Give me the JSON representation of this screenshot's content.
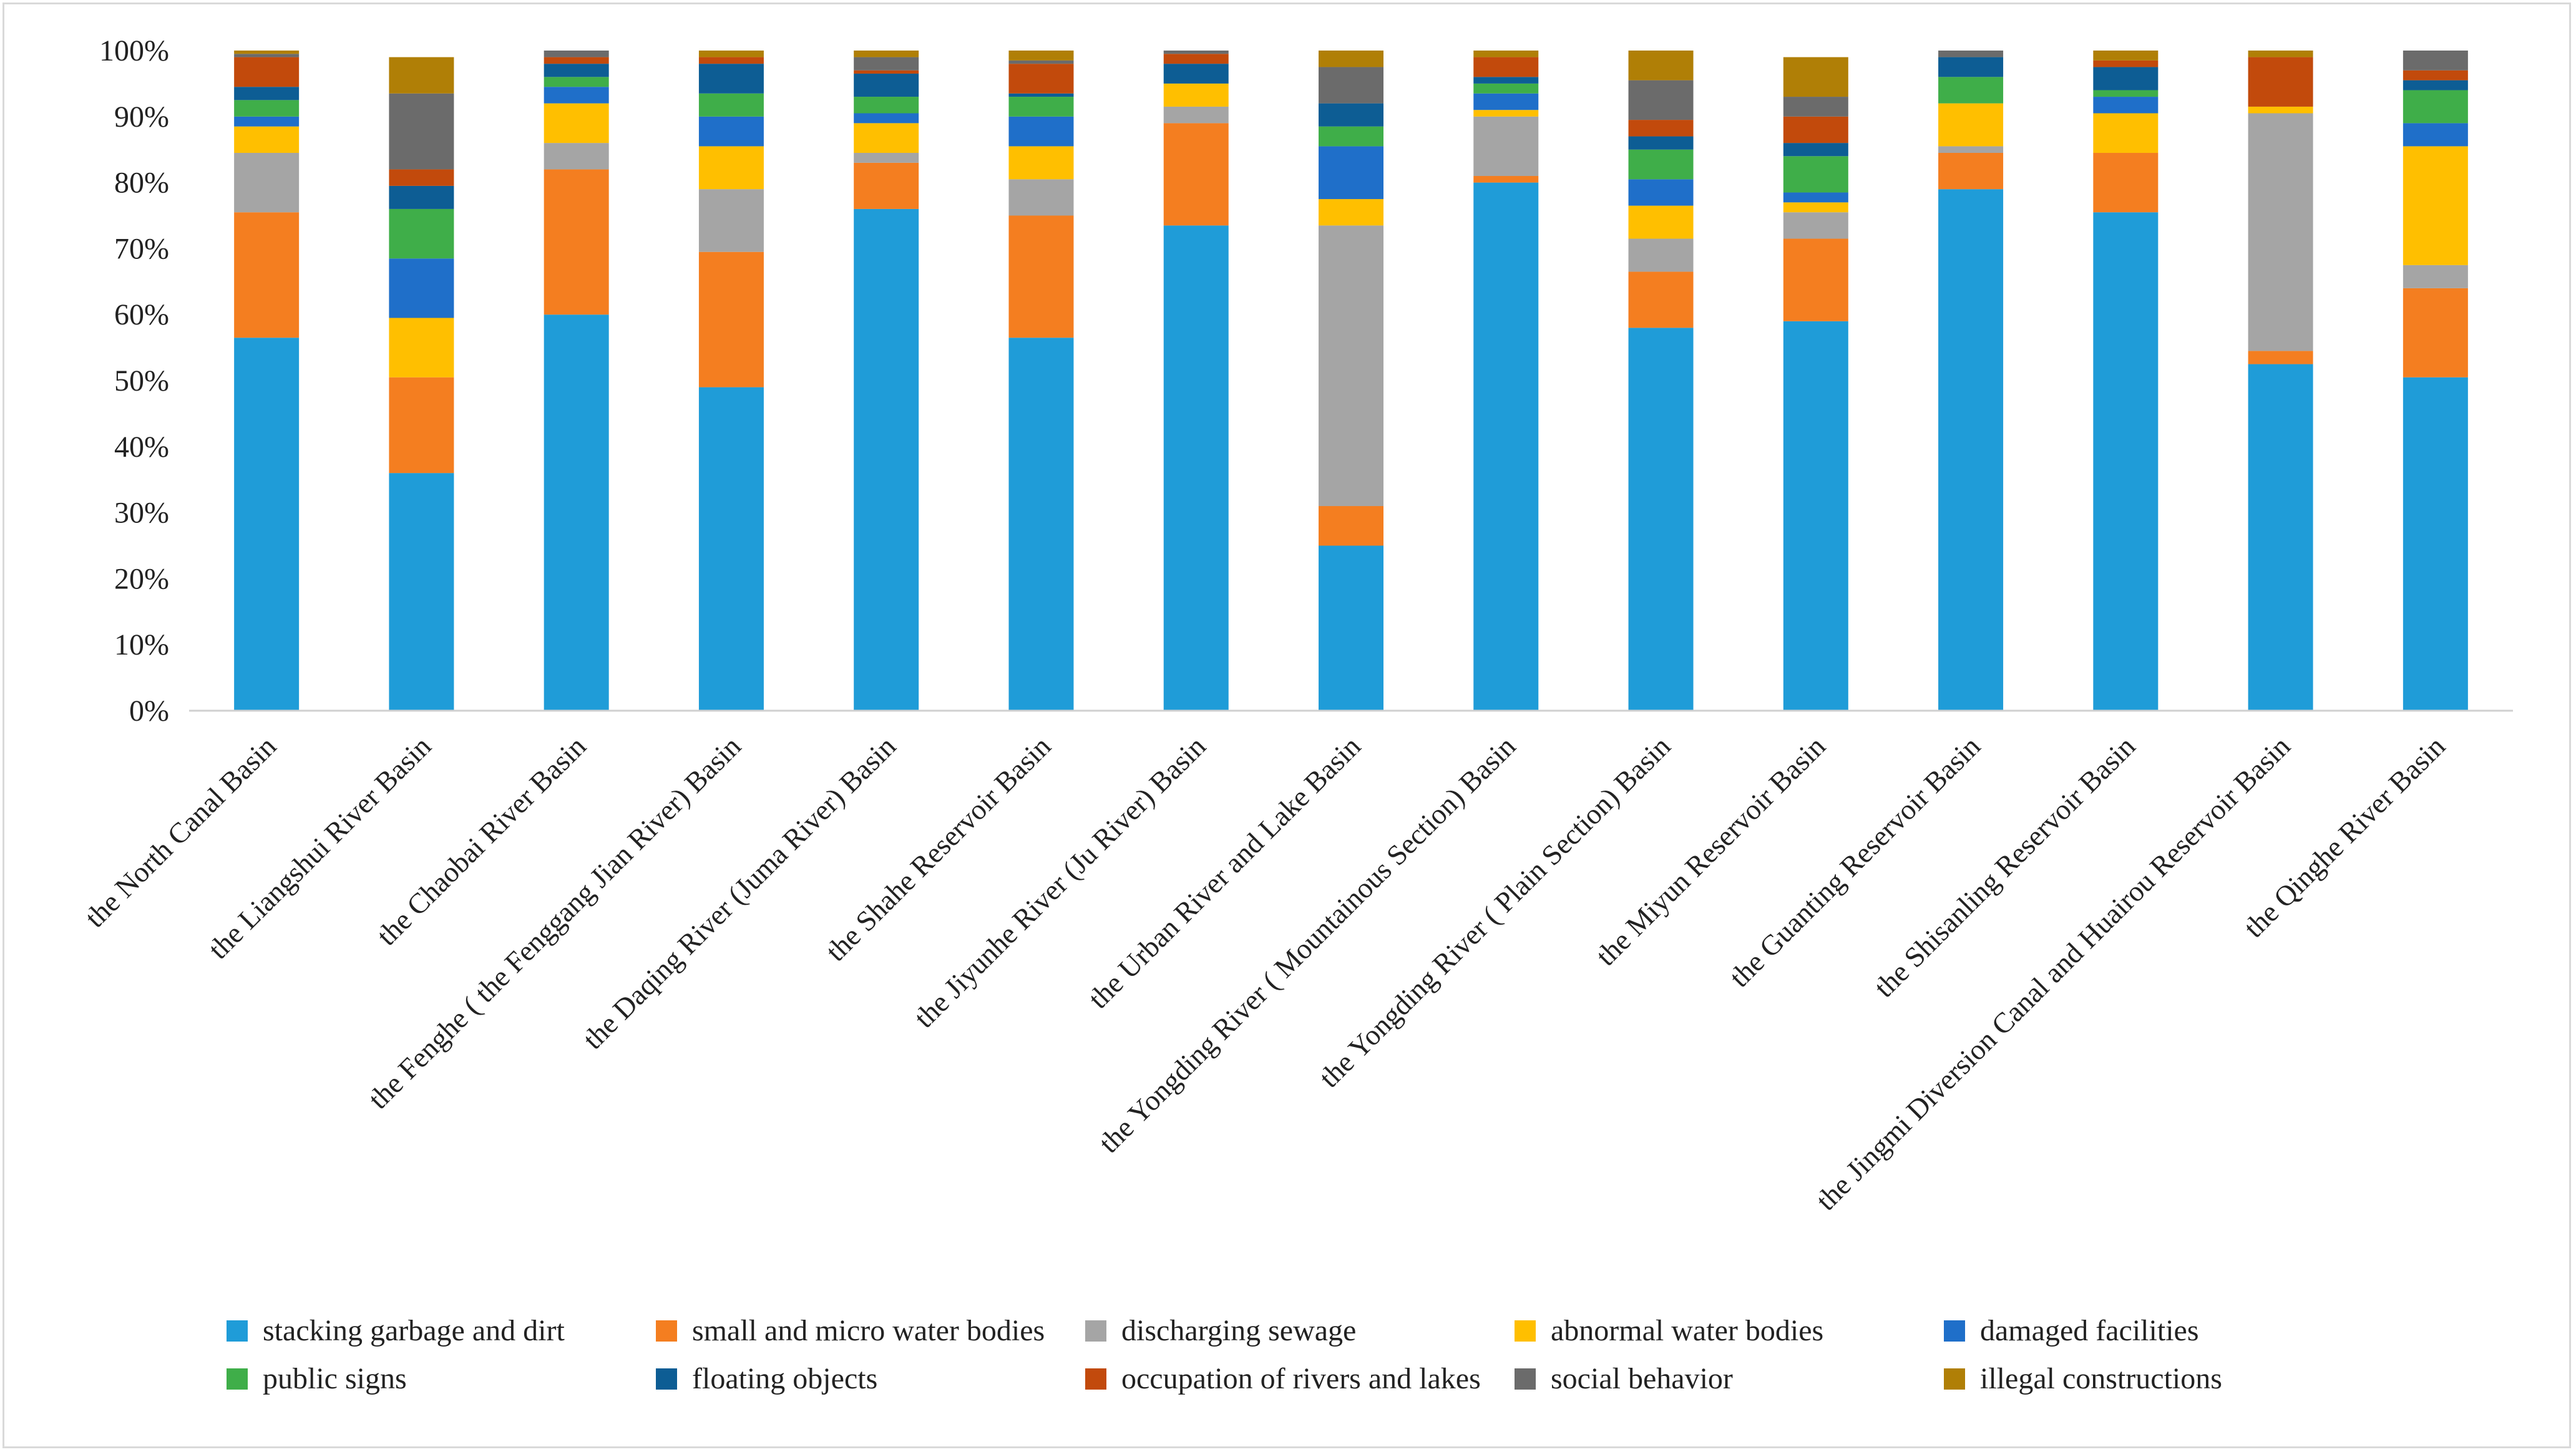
{
  "chart_data": {
    "type": "bar",
    "stacked": true,
    "percent": true,
    "title": "",
    "xlabel": "",
    "ylabel": "",
    "ylim": [
      0,
      100
    ],
    "yticks": [
      "0%",
      "10%",
      "20%",
      "30%",
      "40%",
      "50%",
      "60%",
      "70%",
      "80%",
      "90%",
      "100%"
    ],
    "legend_position": "bottom",
    "categories": [
      "the North Canal Basin",
      "the Liangshui River Basin",
      "the Chaobai River Basin",
      "the Fenghe ( the Fenggang Jian River) Basin",
      "the Daqing River (Juma River) Basin",
      "the Shahe Reservoir Basin",
      "the Jiyunhe River (Ju River) Basin",
      "the Urban River and Lake Basin",
      "the Yongding River ( Mountainous Section) Basin",
      "the Yongding River ( Plain Section) Basin",
      "the Miyun Reservoir Basin",
      "the Guanting Reservoir Basin",
      "the Shisanling Reservoir Basin",
      "the Jingmi Diversion Canal and Huairou Reservoir Basin",
      "the Qinghe River Basin"
    ],
    "series": [
      {
        "name": "stacking garbage and dirt",
        "color": "#1f9cd8",
        "values": [
          56.5,
          36.0,
          60.0,
          49.0,
          76.0,
          56.5,
          73.5,
          25.0,
          80.0,
          58.0,
          59.0,
          79.0,
          75.5,
          52.5,
          50.5
        ]
      },
      {
        "name": "small and micro water bodies",
        "color": "#f47e20",
        "values": [
          19.0,
          14.5,
          22.0,
          20.5,
          7.0,
          18.5,
          15.5,
          6.0,
          1.0,
          8.5,
          12.5,
          5.5,
          9.0,
          2.0,
          13.5
        ]
      },
      {
        "name": "discharging sewage",
        "color": "#a5a5a5",
        "values": [
          9.0,
          0.0,
          4.0,
          9.5,
          1.5,
          5.5,
          2.5,
          42.5,
          9.0,
          5.0,
          4.0,
          1.0,
          0.0,
          36.0,
          3.5
        ]
      },
      {
        "name": "abnormal water bodies",
        "color": "#ffbf00",
        "values": [
          4.0,
          9.0,
          6.0,
          6.5,
          4.5,
          5.0,
          3.5,
          4.0,
          1.0,
          5.0,
          1.5,
          6.5,
          6.0,
          1.0,
          18.0
        ]
      },
      {
        "name": "damaged facilities",
        "color": "#1f6fc9",
        "values": [
          1.5,
          9.0,
          2.5,
          4.5,
          1.5,
          4.5,
          0.0,
          8.0,
          2.5,
          4.0,
          1.5,
          0.0,
          2.5,
          0.0,
          3.5
        ]
      },
      {
        "name": "public signs",
        "color": "#3fae49",
        "values": [
          2.5,
          7.5,
          1.5,
          3.5,
          2.5,
          3.0,
          0.0,
          3.0,
          1.5,
          4.5,
          5.5,
          4.0,
          1.0,
          0.0,
          5.0
        ]
      },
      {
        "name": "floating objects",
        "color": "#0d5d94",
        "values": [
          2.0,
          3.5,
          2.0,
          4.5,
          3.5,
          0.5,
          3.0,
          3.5,
          1.0,
          2.0,
          2.0,
          3.0,
          3.5,
          0.0,
          1.5
        ]
      },
      {
        "name": "occupation of rivers and lakes",
        "color": "#c24a0c",
        "values": [
          4.5,
          2.5,
          1.0,
          1.0,
          0.5,
          4.5,
          1.5,
          0.0,
          3.0,
          2.5,
          4.0,
          0.0,
          1.0,
          7.5,
          1.5
        ]
      },
      {
        "name": "social behavior",
        "color": "#6b6b6b",
        "values": [
          0.5,
          11.5,
          1.0,
          0.0,
          2.0,
          0.5,
          0.5,
          5.5,
          0.0,
          6.0,
          3.0,
          1.0,
          0.0,
          0.0,
          3.0
        ]
      },
      {
        "name": "illegal constructions",
        "color": "#b07f06",
        "values": [
          0.5,
          5.5,
          0.0,
          1.0,
          1.0,
          1.5,
          0.0,
          2.5,
          1.0,
          4.5,
          6.0,
          0.0,
          1.5,
          1.0,
          0.0
        ]
      }
    ]
  }
}
